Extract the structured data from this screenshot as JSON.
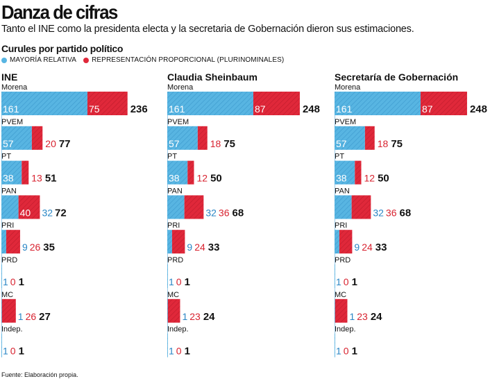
{
  "title": "Danza de cifras",
  "subtitle": "Tanto el INE como la presidenta electa y la secretaria de Gobernación dieron sus estimaciones.",
  "section_title": "Curules por partido político",
  "source": "Fuente: Elaboración propia.",
  "colors": {
    "mayoria": "#58b5e2",
    "rp": "#e0283a",
    "mayoria_text": "#2a86c5",
    "rp_text": "#d8222f"
  },
  "chart_data": {
    "type": "bar",
    "stacked": true,
    "orientation": "horizontal",
    "legend": [
      "MAYORÍA RELATIVA",
      "REPRESENTACIÓN PROPORCIONAL (PLURINOMINALES)"
    ],
    "legend_position": "top-left",
    "groups": [
      {
        "name": "INE",
        "parties": [
          {
            "party": "Morena",
            "mayoria": 161,
            "rp": 75,
            "total": 236
          },
          {
            "party": "PVEM",
            "mayoria": 57,
            "rp": 20,
            "total": 77
          },
          {
            "party": "PT",
            "mayoria": 38,
            "rp": 13,
            "total": 51
          },
          {
            "party": "PAN",
            "mayoria": 32,
            "rp": 40,
            "total": 72
          },
          {
            "party": "PRI",
            "mayoria": 9,
            "rp": 26,
            "total": 35
          },
          {
            "party": "PRD",
            "mayoria": 1,
            "rp": 0,
            "total": 1
          },
          {
            "party": "MC",
            "mayoria": 1,
            "rp": 26,
            "total": 27
          },
          {
            "party": "Indep.",
            "mayoria": 1,
            "rp": 0,
            "total": 1
          }
        ]
      },
      {
        "name": "Claudia Sheinbaum",
        "parties": [
          {
            "party": "Morena",
            "mayoria": 161,
            "rp": 87,
            "total": 248
          },
          {
            "party": "PVEM",
            "mayoria": 57,
            "rp": 18,
            "total": 75
          },
          {
            "party": "PT",
            "mayoria": 38,
            "rp": 12,
            "total": 50
          },
          {
            "party": "PAN",
            "mayoria": 32,
            "rp": 36,
            "total": 68
          },
          {
            "party": "PRI",
            "mayoria": 9,
            "rp": 24,
            "total": 33
          },
          {
            "party": "PRD",
            "mayoria": 1,
            "rp": 0,
            "total": 1
          },
          {
            "party": "MC",
            "mayoria": 1,
            "rp": 23,
            "total": 24
          },
          {
            "party": "Indep.",
            "mayoria": 1,
            "rp": 0,
            "total": 1
          }
        ]
      },
      {
        "name": "Secretaría de Gobernación",
        "parties": [
          {
            "party": "Morena",
            "mayoria": 161,
            "rp": 87,
            "total": 248
          },
          {
            "party": "PVEM",
            "mayoria": 57,
            "rp": 18,
            "total": 75
          },
          {
            "party": "PT",
            "mayoria": 38,
            "rp": 12,
            "total": 50
          },
          {
            "party": "PAN",
            "mayoria": 32,
            "rp": 36,
            "total": 68
          },
          {
            "party": "PRI",
            "mayoria": 9,
            "rp": 24,
            "total": 33
          },
          {
            "party": "PRD",
            "mayoria": 1,
            "rp": 0,
            "total": 1
          },
          {
            "party": "MC",
            "mayoria": 1,
            "rp": 23,
            "total": 24
          },
          {
            "party": "Indep.",
            "mayoria": 1,
            "rp": 0,
            "total": 1
          }
        ]
      }
    ]
  }
}
